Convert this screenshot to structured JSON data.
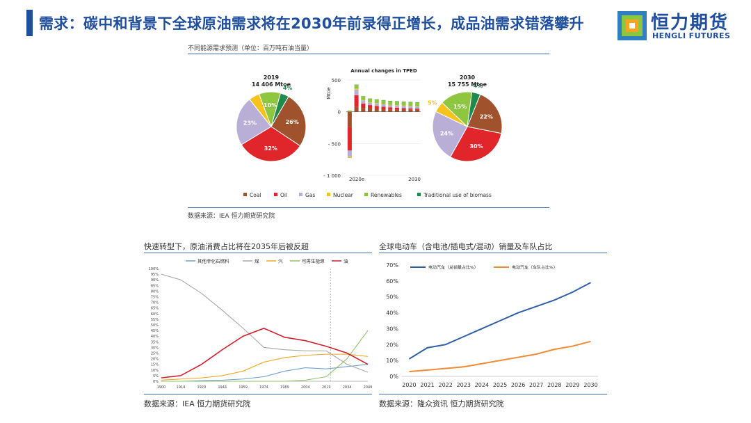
{
  "header": {
    "title": "需求：碳中和背景下全球原油需求将在2030年前录得正增长，成品油需求错落攀升",
    "logo_cn": "恒力期货",
    "logo_en": "HENGLI FUTURES",
    "accent": "#1f4e9c"
  },
  "top_section": {
    "caption": "不同能源需求预测（单位：百万吨石油当量）",
    "source": "数据来源：IEA 恒力期货研究院"
  },
  "bottom_left": {
    "caption": "快速转型下，原油消费占比将在2035年后被反超",
    "source": "数据来源：IEA 恒力期货研究院"
  },
  "bottom_right": {
    "caption": "全球电动车（含电池/插电式/混动）销量及车队占比",
    "source": "数据来源：隆众资讯 恒力期货研究院"
  },
  "chart_data": [
    {
      "type": "pie",
      "title": "2019",
      "subtitle": "14 406 Mtoe",
      "slices": [
        {
          "label": "Coal",
          "value": 26,
          "text": "26%",
          "color": "#a0522d"
        },
        {
          "label": "Oil",
          "value": 32,
          "text": "32%",
          "color": "#e0262b"
        },
        {
          "label": "Gas",
          "value": 23,
          "text": "23%",
          "color": "#b9afd6"
        },
        {
          "label": "Nuclear",
          "value": 5,
          "text": "",
          "color": "#f6c21c"
        },
        {
          "label": "Renewables",
          "value": 10,
          "text": "10%",
          "color": "#8ec63f"
        },
        {
          "label": "Traditional use of biomass",
          "value": 4,
          "text": "4%",
          "color": "#1e8a4c"
        }
      ]
    },
    {
      "type": "bar",
      "title": "Annual changes in TPED",
      "ylabel": "Mtoe",
      "ylim": [
        -1000,
        500
      ],
      "yticks": [
        "500",
        "0",
        "- 500",
        "- 1 000"
      ],
      "x_start_label": "2020e",
      "x_end_label": "2030",
      "series": [
        {
          "name": "Coal",
          "color": "#a0522d",
          "values": [
            -240,
            80,
            60,
            50,
            45,
            40,
            38,
            36,
            34,
            32,
            30
          ]
        },
        {
          "name": "Oil",
          "color": "#e0262b",
          "values": [
            -370,
            180,
            70,
            55,
            45,
            38,
            32,
            28,
            25,
            22,
            20
          ]
        },
        {
          "name": "Gas",
          "color": "#b9afd6",
          "values": [
            -90,
            90,
            50,
            40,
            40,
            38,
            36,
            35,
            33,
            32,
            30
          ]
        },
        {
          "name": "Nuclear",
          "color": "#f6c21c",
          "values": [
            -15,
            15,
            8,
            6,
            6,
            6,
            5,
            5,
            5,
            5,
            5
          ]
        },
        {
          "name": "Renewables",
          "color": "#8ec63f",
          "values": [
            20,
            60,
            55,
            55,
            58,
            60,
            60,
            62,
            62,
            64,
            65
          ]
        },
        {
          "name": "Traditional use of biomass",
          "color": "#1e8a4c",
          "values": [
            -5,
            3,
            2,
            2,
            2,
            2,
            1,
            1,
            1,
            1,
            1
          ]
        }
      ]
    },
    {
      "type": "pie",
      "title": "2030",
      "subtitle": "15 755 Mtoe",
      "slices": [
        {
          "label": "Coal",
          "value": 22,
          "text": "22%",
          "color": "#a0522d"
        },
        {
          "label": "Oil",
          "value": 30,
          "text": "30%",
          "color": "#e0262b"
        },
        {
          "label": "Gas",
          "value": 24,
          "text": "24%",
          "color": "#b9afd6"
        },
        {
          "label": "Nuclear",
          "value": 5,
          "text": "5%",
          "color": "#f6c21c"
        },
        {
          "label": "Renewables",
          "value": 15,
          "text": "15%",
          "color": "#8ec63f"
        },
        {
          "label": "Traditional use of biomass",
          "value": 4,
          "text": "4%",
          "color": "#1e8a4c"
        }
      ]
    },
    {
      "type": "line",
      "legend": [
        "其他非化石燃料",
        "煤",
        "汽",
        "可再生能源",
        "油"
      ],
      "colors": [
        "#6f9fd0",
        "#a6a6a6",
        "#f5a623",
        "#92c36a",
        "#d21f2a"
      ],
      "x": [
        1900,
        1914,
        1929,
        1944,
        1959,
        1974,
        1989,
        2004,
        2019,
        2034,
        2049
      ],
      "xticks": [
        "1900",
        "1914",
        "1929",
        "1944",
        "1959",
        "1974",
        "1989",
        "2004",
        "2019",
        "2034",
        "2049"
      ],
      "yticks": [
        "0%",
        "5%",
        "10%",
        "15%",
        "20%",
        "25%",
        "30%",
        "35%",
        "40%",
        "45%",
        "50%",
        "55%",
        "60%",
        "65%",
        "70%",
        "75%",
        "80%",
        "85%",
        "90%",
        "95%",
        "100%"
      ],
      "ylim": [
        0,
        100
      ],
      "series": [
        {
          "name": "其他非化石燃料",
          "values": [
            0,
            0,
            0.5,
            1,
            2,
            4,
            9,
            12,
            11,
            13,
            15
          ]
        },
        {
          "name": "煤",
          "values": [
            95,
            90,
            78,
            63,
            47,
            30,
            28,
            27,
            27,
            15,
            8
          ]
        },
        {
          "name": "汽",
          "values": [
            1,
            2,
            3,
            5,
            9,
            17,
            21,
            23,
            24,
            24,
            22
          ]
        },
        {
          "name": "可再生能源",
          "values": [
            0,
            0,
            0,
            0,
            0,
            0,
            0,
            1,
            4,
            20,
            45
          ]
        },
        {
          "name": "油",
          "values": [
            3,
            5,
            15,
            28,
            40,
            47,
            39,
            36,
            31,
            25,
            15
          ]
        }
      ]
    },
    {
      "type": "line",
      "legend": [
        "电动汽车（总销量占比%）",
        "电动汽车（车队占比%）"
      ],
      "colors": [
        "#2e5fa8",
        "#f08a33"
      ],
      "x": [
        2020,
        2021,
        2022,
        2023,
        2024,
        2025,
        2026,
        2027,
        2028,
        2029,
        2030
      ],
      "yticks": [
        "0%",
        "10%",
        "20%",
        "30%",
        "40%",
        "50%",
        "60%",
        "70%"
      ],
      "ylim": [
        0,
        70
      ],
      "series": [
        {
          "name": "电动汽车（总销量占比%）",
          "values": [
            11,
            18,
            20,
            25,
            30,
            35,
            40,
            44,
            48,
            53,
            59
          ]
        },
        {
          "name": "电动汽车（车队占比%）",
          "values": [
            3,
            4,
            5,
            6,
            8,
            10,
            12,
            14,
            17,
            19,
            22
          ]
        }
      ]
    }
  ]
}
